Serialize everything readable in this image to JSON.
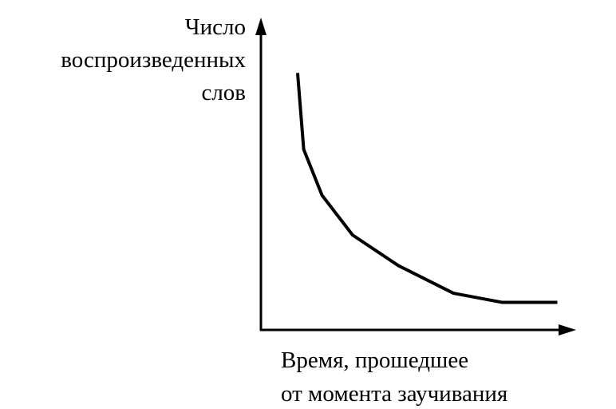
{
  "chart_data": {
    "type": "line",
    "y_label": [
      "Число",
      "воспроизведенных",
      "слов"
    ],
    "x_label": [
      "Время, прошедшее",
      "от момента заучивания"
    ],
    "x": [
      12,
      14,
      20,
      30,
      45,
      63,
      79,
      97
    ],
    "series": [
      {
        "color": "#000000",
        "values": [
          84,
          59,
          44,
          31,
          21,
          12,
          9,
          9
        ]
      }
    ],
    "xlim": [
      0,
      100
    ],
    "ylim": [
      0,
      100
    ]
  }
}
